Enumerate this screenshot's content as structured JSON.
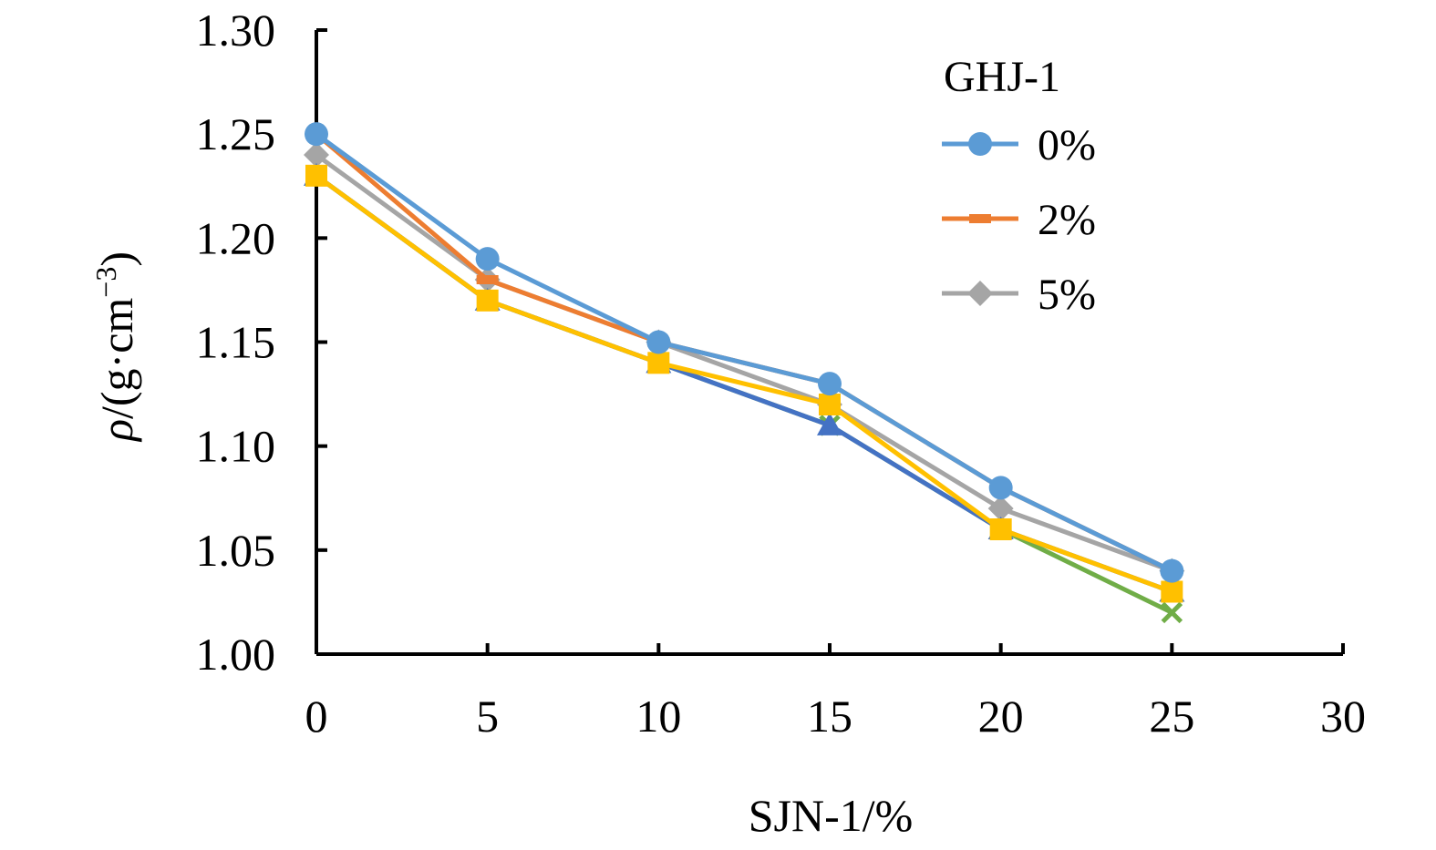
{
  "chart_data": {
    "type": "line",
    "title": "",
    "xlabel": "SJN-1/%",
    "ylabel_parts": {
      "rho": "ρ",
      "prefix": "/(g·cm",
      "sup": "−3",
      "suffix": ")"
    },
    "xlim": [
      0,
      30
    ],
    "ylim": [
      1.0,
      1.3
    ],
    "xticks": [
      "0",
      "5",
      "10",
      "15",
      "20",
      "25",
      "30"
    ],
    "yticks": [
      "1.00",
      "1.05",
      "1.10",
      "1.15",
      "1.20",
      "1.25",
      "1.30"
    ],
    "grid": false,
    "legend": {
      "title": "GHJ-1",
      "placement": "top-right"
    },
    "x": [
      0,
      5,
      10,
      15,
      20,
      25
    ],
    "series": [
      {
        "name": "0%",
        "marker": "circle",
        "color": "#5B9BD5",
        "values": [
          1.25,
          1.19,
          1.15,
          1.13,
          1.08,
          1.04
        ],
        "in_legend": true
      },
      {
        "name": "2%",
        "marker": "dash",
        "color": "#ED7D31",
        "values": [
          1.25,
          1.18,
          1.15,
          1.13,
          1.08,
          1.04
        ],
        "in_legend": true
      },
      {
        "name": "5%",
        "marker": "diamond",
        "color": "#A5A5A5",
        "values": [
          1.24,
          1.18,
          1.15,
          1.12,
          1.07,
          1.04
        ],
        "in_legend": true
      },
      {
        "name": "",
        "marker": "square",
        "color": "#FFC000",
        "values": [
          1.23,
          1.17,
          1.14,
          1.12,
          1.06,
          1.03
        ],
        "in_legend": false
      },
      {
        "name": "",
        "marker": "triangle",
        "color": "#4472C4",
        "values": [
          1.23,
          1.17,
          1.14,
          1.11,
          1.06,
          1.03
        ],
        "in_legend": false
      },
      {
        "name": "",
        "marker": "x",
        "color": "#70AD47",
        "values": [
          1.23,
          1.17,
          1.14,
          1.11,
          1.06,
          1.02
        ],
        "in_legend": false
      }
    ]
  }
}
